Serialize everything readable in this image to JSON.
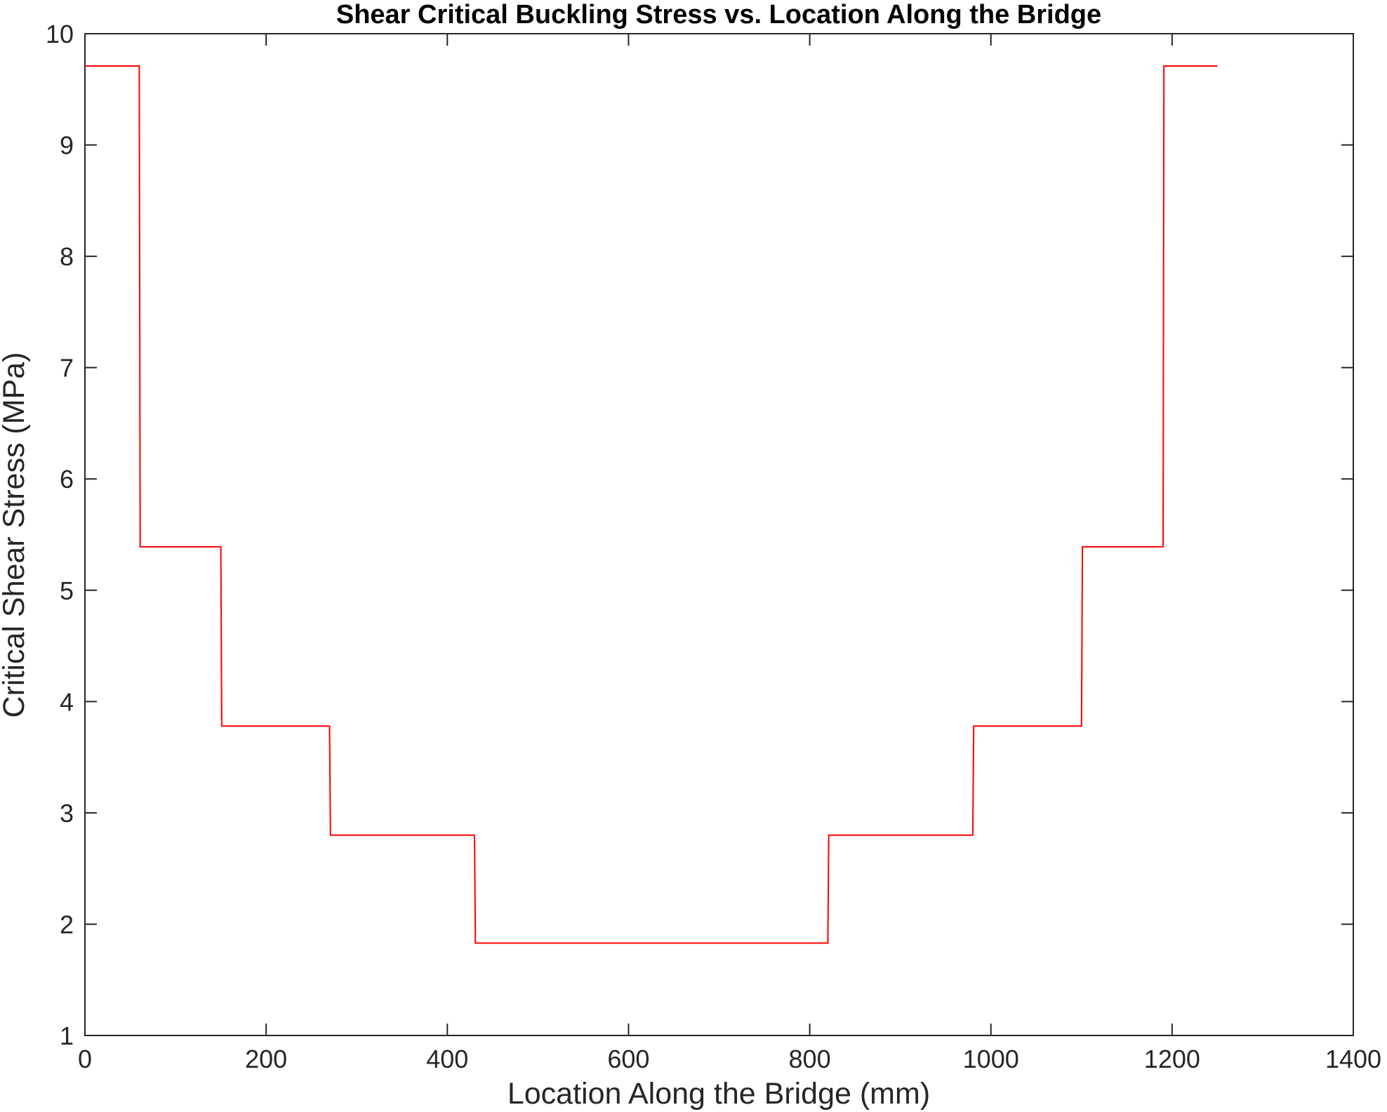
{
  "chart_data": {
    "type": "line",
    "title": "Shear Critical Buckling Stress vs. Location Along the Bridge",
    "xlabel": "Location Along the Bridge (mm)",
    "ylabel": "Critical Shear Stress (MPa)",
    "xlim": [
      0,
      1400
    ],
    "ylim": [
      1,
      10
    ],
    "xticks": [
      0,
      200,
      400,
      600,
      800,
      1000,
      1200,
      1400
    ],
    "yticks": [
      1,
      2,
      3,
      4,
      5,
      6,
      7,
      8,
      9,
      10
    ],
    "xtick_labels": [
      "0",
      "200",
      "400",
      "600",
      "800",
      "1000",
      "1200",
      "1400"
    ],
    "ytick_labels": [
      "1",
      "2",
      "3",
      "4",
      "5",
      "6",
      "7",
      "8",
      "9",
      "10"
    ],
    "grid": false,
    "legend": "none",
    "series": [
      {
        "color": "#ff0000",
        "x": [
          0,
          60,
          61,
          150,
          151,
          270,
          271,
          430,
          431,
          820,
          821,
          980,
          981,
          1100,
          1101,
          1190,
          1191,
          1250
        ],
        "y": [
          9.71,
          9.71,
          5.39,
          5.39,
          3.78,
          3.78,
          2.8,
          2.8,
          1.83,
          1.83,
          2.8,
          2.8,
          3.78,
          3.78,
          5.39,
          5.39,
          9.71,
          9.71
        ]
      }
    ]
  }
}
